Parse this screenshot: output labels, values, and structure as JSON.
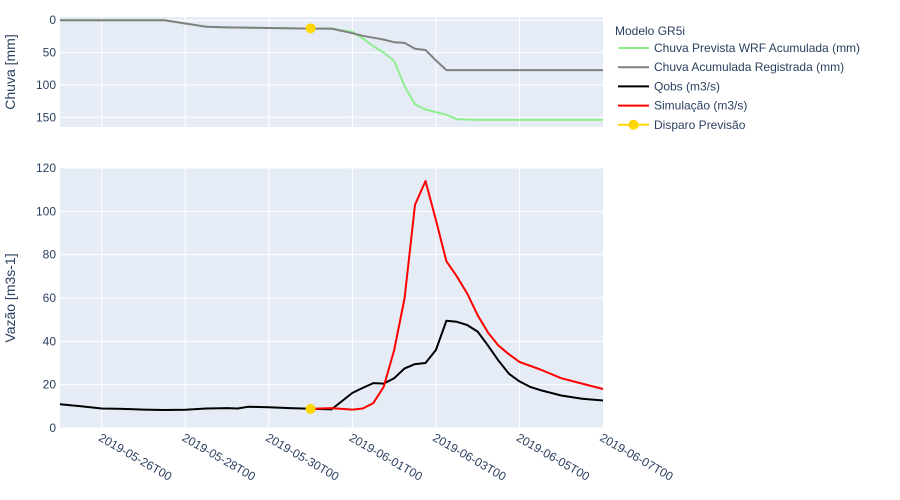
{
  "chart_data": [
    {
      "type": "line",
      "panel": "top",
      "ylabel": "Chuva [mm]",
      "y_reversed": true,
      "ylim": [
        165,
        -5
      ],
      "yticks": [
        0,
        50,
        100,
        150
      ],
      "xlim": [
        "2019-05-25T00",
        "2019-06-07T00"
      ],
      "grid": true,
      "series": [
        {
          "name": "Chuva Prevista WRF Acumulada (mm)",
          "color": "#90ee90",
          "x": [
            "2019-05-25T00",
            "2019-05-27T12",
            "2019-05-28T00",
            "2019-05-28T12",
            "2019-05-29T00",
            "2019-05-30T00",
            "2019-05-31T00",
            "2019-05-31T12",
            "2019-06-01T00",
            "2019-06-01T06",
            "2019-06-01T12",
            "2019-06-01T18",
            "2019-06-02T00",
            "2019-06-02T06",
            "2019-06-02T12",
            "2019-06-02T18",
            "2019-06-03T00",
            "2019-06-03T06",
            "2019-06-03T12",
            "2019-06-04T00",
            "2019-06-05T00",
            "2019-06-06T00",
            "2019-06-07T00"
          ],
          "values": [
            0,
            0,
            5,
            10,
            11,
            12,
            13,
            13,
            18,
            28,
            40,
            50,
            63,
            102,
            130,
            138,
            142,
            146,
            153,
            154,
            154,
            154,
            154
          ]
        },
        {
          "name": "Chuva Acumulada Registrada (mm)",
          "color": "#808080",
          "x": [
            "2019-05-25T00",
            "2019-05-27T12",
            "2019-05-28T00",
            "2019-05-28T12",
            "2019-05-29T00",
            "2019-05-30T00",
            "2019-05-31T00",
            "2019-05-31T12",
            "2019-06-01T00",
            "2019-06-01T06",
            "2019-06-01T12",
            "2019-06-01T18",
            "2019-06-02T00",
            "2019-06-02T06",
            "2019-06-02T12",
            "2019-06-02T18",
            "2019-06-03T00",
            "2019-06-03T06",
            "2019-06-03T12",
            "2019-06-04T00",
            "2019-06-05T00",
            "2019-06-06T00",
            "2019-06-07T00"
          ],
          "values": [
            0,
            0,
            5,
            10,
            11,
            12,
            13,
            13,
            20,
            24,
            27,
            30,
            34,
            35,
            44,
            46,
            62,
            77,
            77,
            77,
            77,
            77,
            77
          ]
        },
        {
          "name": "Disparo Previsão",
          "color": "#ffd700",
          "marker": true,
          "show_legend": false,
          "x": [
            "2019-05-31T00"
          ],
          "values": [
            12.5
          ]
        }
      ]
    },
    {
      "type": "line",
      "panel": "bottom",
      "ylabel": "Vazão [m3s-1]",
      "ylim": [
        0,
        120
      ],
      "yticks": [
        0,
        20,
        40,
        60,
        80,
        100,
        120
      ],
      "xlim": [
        "2019-05-25T00",
        "2019-06-07T00"
      ],
      "xticks": [
        "2019-05-26T00",
        "2019-05-28T00",
        "2019-05-30T00",
        "2019-06-01T00",
        "2019-06-03T00",
        "2019-06-05T00",
        "2019-06-07T00"
      ],
      "grid": true,
      "series": [
        {
          "name": "Qobs (m3/s)",
          "color": "#000000",
          "x": [
            "2019-05-25T00",
            "2019-05-25T12",
            "2019-05-26T00",
            "2019-05-26T12",
            "2019-05-27T00",
            "2019-05-27T12",
            "2019-05-28T00",
            "2019-05-28T12",
            "2019-05-29T00",
            "2019-05-29T06",
            "2019-05-29T12",
            "2019-05-30T00",
            "2019-05-30T12",
            "2019-05-31T00",
            "2019-05-31T12",
            "2019-06-01T00",
            "2019-06-01T06",
            "2019-06-01T12",
            "2019-06-01T18",
            "2019-06-02T00",
            "2019-06-02T06",
            "2019-06-02T12",
            "2019-06-02T18",
            "2019-06-03T00",
            "2019-06-03T06",
            "2019-06-03T12",
            "2019-06-03T18",
            "2019-06-04T00",
            "2019-06-04T06",
            "2019-06-04T12",
            "2019-06-04T18",
            "2019-06-05T00",
            "2019-06-05T06",
            "2019-06-05T12",
            "2019-06-06T00",
            "2019-06-06T12",
            "2019-06-07T00"
          ],
          "values": [
            11,
            10,
            9,
            8.8,
            8.5,
            8.3,
            8.4,
            9.0,
            9.2,
            9.0,
            9.8,
            9.6,
            9.2,
            8.9,
            8.6,
            16.2,
            18.5,
            20.7,
            20.5,
            23,
            27.5,
            29.5,
            30,
            36,
            49.5,
            49,
            47.5,
            44.5,
            38,
            31,
            25,
            21.5,
            19,
            17.5,
            15,
            13.5,
            12.7
          ]
        },
        {
          "name": "Simulação (m3/s)",
          "color": "#ff0000",
          "x": [
            "2019-05-31T00",
            "2019-05-31T12",
            "2019-06-01T00",
            "2019-06-01T06",
            "2019-06-01T12",
            "2019-06-01T18",
            "2019-06-02T00",
            "2019-06-02T06",
            "2019-06-02T12",
            "2019-06-02T18",
            "2019-06-03T00",
            "2019-06-03T06",
            "2019-06-03T12",
            "2019-06-03T18",
            "2019-06-04T00",
            "2019-06-04T06",
            "2019-06-04T12",
            "2019-06-04T18",
            "2019-06-05T00",
            "2019-06-05T12",
            "2019-06-06T00",
            "2019-06-06T12",
            "2019-06-07T00"
          ],
          "values": [
            8.8,
            9.2,
            8.5,
            9.0,
            11.5,
            19,
            36,
            60,
            103,
            114,
            96,
            77,
            70,
            62,
            52,
            44,
            38,
            34,
            30.5,
            27,
            23,
            20.5,
            18
          ]
        },
        {
          "name": "Disparo Previsão",
          "color": "#ffd700",
          "marker": true,
          "show_legend": false,
          "x": [
            "2019-05-31T00"
          ],
          "values": [
            8.8
          ]
        }
      ]
    }
  ],
  "legend": {
    "title": "Modelo GR5i",
    "placement": "top-right",
    "entries": [
      {
        "name": "Chuva Prevista WRF Acumulada (mm)",
        "color": "#90ee90",
        "marker": false
      },
      {
        "name": "Chuva Acumulada Registrada (mm)",
        "color": "#808080",
        "marker": false
      },
      {
        "name": "Qobs (m3/s)",
        "color": "#000000",
        "marker": false
      },
      {
        "name": "Simulação (m3/s)",
        "color": "#ff0000",
        "marker": false
      },
      {
        "name": "Disparo Previsão",
        "color": "#ffd700",
        "marker": true
      }
    ]
  },
  "colors": {
    "plot_bg": "#e5ecf6",
    "grid": "#ffffff",
    "text": "#2a3f5f"
  }
}
